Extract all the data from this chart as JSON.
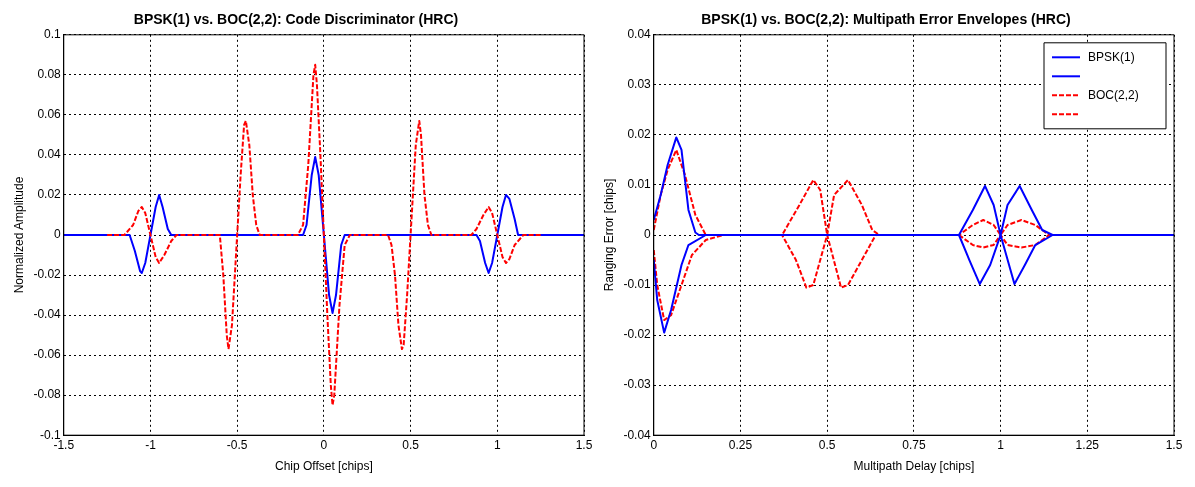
{
  "chart_data": [
    {
      "type": "line",
      "title": "BPSK(1) vs. BOC(2,2): Code Discriminator (HRC)",
      "xlabel": "Chip Offset [chips]",
      "ylabel": "Normalized Amplitude",
      "xlim": [
        -1.5,
        1.5
      ],
      "xticks": [
        -1.5,
        -1,
        -0.5,
        0,
        0.5,
        1,
        1.5
      ],
      "ylim": [
        -0.1,
        0.1
      ],
      "yticks": [
        -0.1,
        -0.08,
        -0.06,
        -0.04,
        -0.02,
        0,
        0.02,
        0.04,
        0.06,
        0.08,
        0.1
      ],
      "grid": true,
      "legend": false,
      "marker": "none",
      "series": [
        {
          "color": "#ff0000",
          "line_style": "dashed",
          "x": [
            -1.25,
            -1.15,
            -1.1,
            -1.07,
            -1.05,
            -1.03,
            -1.0,
            -0.97,
            -0.95,
            -0.92,
            -0.88,
            -0.85,
            -0.6,
            -0.58,
            -0.56,
            -0.55,
            -0.53,
            -0.5,
            -0.48,
            -0.46,
            -0.45,
            -0.43,
            -0.41,
            -0.39,
            -0.37,
            -0.15,
            -0.12,
            -0.09,
            -0.06,
            -0.05,
            -0.04,
            -0.02,
            0,
            0.02,
            0.04,
            0.05,
            0.06,
            0.09,
            0.12,
            0.15,
            0.37,
            0.39,
            0.41,
            0.43,
            0.45,
            0.46,
            0.48,
            0.5,
            0.53,
            0.55,
            0.56,
            0.58,
            0.6,
            0.62,
            0.85,
            0.88,
            0.92,
            0.95,
            0.97,
            1.0,
            1.03,
            1.05,
            1.07,
            1.1,
            1.15,
            1.25
          ],
          "values": [
            0,
            0,
            0.005,
            0.012,
            0.014,
            0.011,
            0,
            -0.011,
            -0.014,
            -0.01,
            -0.003,
            0,
            0,
            -0.02,
            -0.05,
            -0.057,
            -0.045,
            0,
            0.03,
            0.055,
            0.057,
            0.045,
            0.02,
            0.005,
            0,
            0,
            0.005,
            0.035,
            0.08,
            0.085,
            0.075,
            0.04,
            0,
            -0.04,
            -0.075,
            -0.085,
            -0.08,
            -0.035,
            -0.005,
            0,
            0,
            -0.005,
            -0.02,
            -0.045,
            -0.057,
            -0.055,
            -0.03,
            0,
            0.045,
            0.057,
            0.05,
            0.02,
            0.005,
            0,
            0,
            0.003,
            0.01,
            0.014,
            0.011,
            0,
            -0.011,
            -0.014,
            -0.012,
            -0.005,
            0,
            0
          ]
        },
        {
          "color": "#0000ff",
          "line_style": "solid",
          "x": [
            -1.5,
            -1.12,
            -1.09,
            -1.06,
            -1.05,
            -1.03,
            -1.0,
            -0.97,
            -0.95,
            -0.93,
            -0.9,
            -0.88,
            -0.12,
            -0.1,
            -0.07,
            -0.05,
            -0.03,
            0,
            0.03,
            0.05,
            0.07,
            0.1,
            0.12,
            0.88,
            0.9,
            0.93,
            0.95,
            0.97,
            1.0,
            1.03,
            1.05,
            1.07,
            1.1,
            1.12,
            1.5
          ],
          "values": [
            0,
            0,
            -0.008,
            -0.018,
            -0.019,
            -0.014,
            0,
            0.014,
            0.02,
            0.014,
            0.003,
            0,
            0,
            0.005,
            0.03,
            0.039,
            0.03,
            0,
            -0.03,
            -0.039,
            -0.03,
            -0.005,
            0,
            0,
            -0.003,
            -0.014,
            -0.019,
            -0.014,
            0,
            0.014,
            0.02,
            0.018,
            0.008,
            0,
            0
          ]
        }
      ]
    },
    {
      "type": "line",
      "title": "BPSK(1) vs. BOC(2,2): Multipath Error Envelopes (HRC)",
      "xlabel": "Multipath Delay [chips]",
      "ylabel": "Ranging Error [chips]",
      "xlim": [
        0,
        1.5
      ],
      "xticks": [
        0,
        0.25,
        0.5,
        0.75,
        1,
        1.25,
        1.5
      ],
      "ylim": [
        -0.04,
        0.04
      ],
      "yticks": [
        -0.04,
        -0.03,
        -0.02,
        -0.01,
        0,
        0.01,
        0.02,
        0.03,
        0.04
      ],
      "grid": true,
      "legend": "top right",
      "marker": "none",
      "series": [
        {
          "name": "BPSK(1)",
          "color": "#0000ff",
          "line_style": "solid",
          "x": [
            0,
            0.02,
            0.04,
            0.065,
            0.08,
            0.1,
            0.12,
            0.13,
            0.88,
            0.92,
            0.955,
            0.98,
            1.0,
            1.02,
            1.055,
            1.09,
            1.12,
            1.15,
            1.5
          ],
          "values": [
            0.003,
            0.008,
            0.014,
            0.0195,
            0.017,
            0.005,
            0.0005,
            0,
            0,
            0.005,
            0.0098,
            0.006,
            0,
            0.006,
            0.0098,
            0.005,
            0.001,
            0,
            0
          ]
        },
        {
          "color": "#0000ff",
          "line_style": "solid",
          "x": [
            0,
            0.01,
            0.03,
            0.05,
            0.08,
            0.1,
            0.15,
            0.88,
            0.91,
            0.94,
            0.97,
            1.0,
            1.04,
            1.07,
            1.1,
            1.15,
            1.5
          ],
          "values": [
            -0.005,
            -0.013,
            -0.0195,
            -0.015,
            -0.006,
            -0.002,
            0,
            0,
            -0.005,
            -0.0098,
            -0.006,
            0,
            -0.0098,
            -0.006,
            -0.002,
            0,
            0
          ]
        },
        {
          "name": "BOC(2,2)",
          "color": "#ff0000",
          "line_style": "dashed",
          "x": [
            0,
            0.02,
            0.04,
            0.065,
            0.09,
            0.12,
            0.15,
            0.37,
            0.42,
            0.46,
            0.48,
            0.5,
            0.52,
            0.56,
            0.6,
            0.63,
            0.65,
            0.88,
            0.92,
            0.95,
            0.98,
            1.0,
            1.02,
            1.06,
            1.1,
            1.14,
            1.5
          ],
          "values": [
            0.001,
            0.008,
            0.013,
            0.017,
            0.012,
            0.004,
            0,
            0,
            0.006,
            0.011,
            0.009,
            0,
            0.008,
            0.011,
            0.006,
            0.001,
            0,
            0,
            0.002,
            0.003,
            0.002,
            0,
            0.002,
            0.003,
            0.002,
            0,
            0
          ]
        },
        {
          "color": "#ff0000",
          "line_style": "dashed",
          "x": [
            0,
            0.01,
            0.03,
            0.05,
            0.08,
            0.11,
            0.15,
            0.2,
            0.37,
            0.41,
            0.44,
            0.46,
            0.5,
            0.54,
            0.56,
            0.6,
            0.64,
            0.88,
            0.92,
            0.95,
            0.98,
            1.0,
            1.02,
            1.06,
            1.1,
            1.14,
            1.5
          ],
          "values": [
            -0.003,
            -0.01,
            -0.017,
            -0.016,
            -0.01,
            -0.004,
            -0.001,
            0,
            0,
            -0.005,
            -0.0105,
            -0.01,
            0,
            -0.0105,
            -0.01,
            -0.005,
            0,
            0,
            -0.002,
            -0.0025,
            -0.002,
            0,
            -0.002,
            -0.0025,
            -0.002,
            0,
            0
          ]
        }
      ]
    }
  ]
}
